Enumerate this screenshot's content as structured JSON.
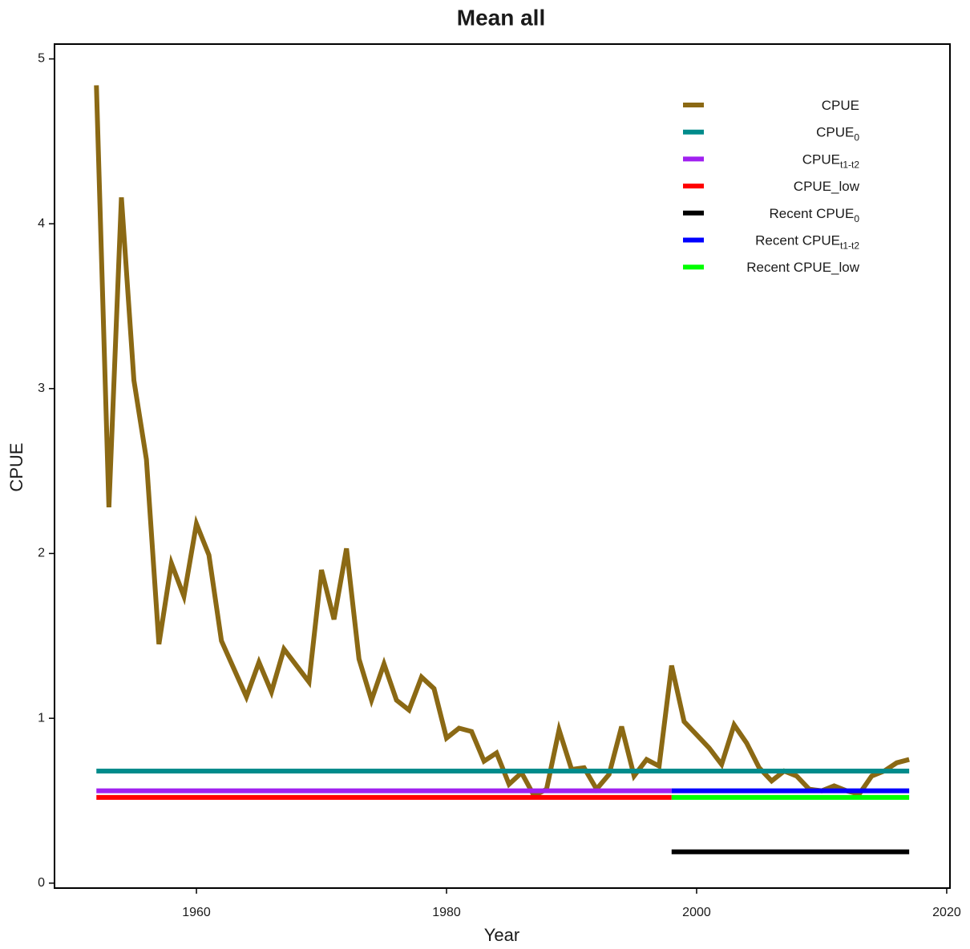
{
  "chart_data": {
    "type": "line",
    "title": "Mean all",
    "x_label": "Year",
    "y_label": "CPUE",
    "xlim": [
      1948.65,
      2020.26
    ],
    "ylim": [
      -0.03,
      5.09
    ],
    "xticks": [
      1960,
      1980,
      2000,
      2020
    ],
    "yticks": [
      0,
      1,
      2,
      3,
      4,
      5
    ],
    "legend": "top-right",
    "series": [
      {
        "name": "CPUE",
        "color": "#8B6914",
        "x": [
          1952,
          1953,
          1954,
          1955,
          1956,
          1957,
          1958,
          1959,
          1960,
          1961,
          1962,
          1963,
          1964,
          1965,
          1966,
          1967,
          1968,
          1969,
          1970,
          1971,
          1972,
          1973,
          1974,
          1975,
          1976,
          1977,
          1978,
          1979,
          1980,
          1981,
          1982,
          1983,
          1984,
          1985,
          1986,
          1987,
          1988,
          1989,
          1990,
          1991,
          1992,
          1993,
          1994,
          1995,
          1996,
          1997,
          1998,
          1999,
          2000,
          2001,
          2002,
          2003,
          2004,
          2005,
          2006,
          2007,
          2008,
          2009,
          2010,
          2011,
          2012,
          2013,
          2014,
          2015,
          2016,
          2017
        ],
        "values": [
          4.84,
          2.28,
          4.16,
          3.05,
          2.57,
          1.45,
          1.94,
          1.74,
          2.18,
          1.99,
          1.47,
          1.3,
          1.13,
          1.34,
          1.16,
          1.42,
          1.32,
          1.22,
          1.9,
          1.6,
          2.03,
          1.36,
          1.11,
          1.33,
          1.11,
          1.05,
          1.25,
          1.18,
          0.88,
          0.94,
          0.92,
          0.74,
          0.79,
          0.6,
          0.67,
          0.53,
          0.57,
          0.93,
          0.69,
          0.7,
          0.57,
          0.66,
          0.95,
          0.65,
          0.75,
          0.71,
          1.32,
          0.98,
          0.9,
          0.82,
          0.72,
          0.96,
          0.85,
          0.7,
          0.62,
          0.68,
          0.65,
          0.57,
          0.56,
          0.59,
          0.56,
          0.54,
          0.65,
          0.68,
          0.73,
          0.75
        ]
      },
      {
        "name": "CPUE",
        "name_sub": "0",
        "color": "#008B8B",
        "x": [
          1952,
          2017
        ],
        "values": [
          0.68,
          0.68
        ]
      },
      {
        "name": "CPUE",
        "name_sub": "t1-t2",
        "color": "#A020F0",
        "x": [
          1952,
          1998
        ],
        "values": [
          0.56,
          0.56
        ]
      },
      {
        "name": "CPUE_low",
        "color": "#FF0000",
        "x": [
          1952,
          1998
        ],
        "values": [
          0.52,
          0.52
        ]
      },
      {
        "name": "Recent CPUE",
        "name_sub": "0",
        "color": "#000000",
        "x": [
          1998,
          2017
        ],
        "values": [
          0.19,
          0.19
        ]
      },
      {
        "name": "Recent CPUE",
        "name_sub": "t1-t2",
        "color": "#0000FF",
        "x": [
          1998,
          2017
        ],
        "values": [
          0.56,
          0.56
        ]
      },
      {
        "name": "Recent CPUE_low",
        "color": "#00FF00",
        "x": [
          1998,
          2017
        ],
        "values": [
          0.52,
          0.52
        ]
      }
    ]
  }
}
